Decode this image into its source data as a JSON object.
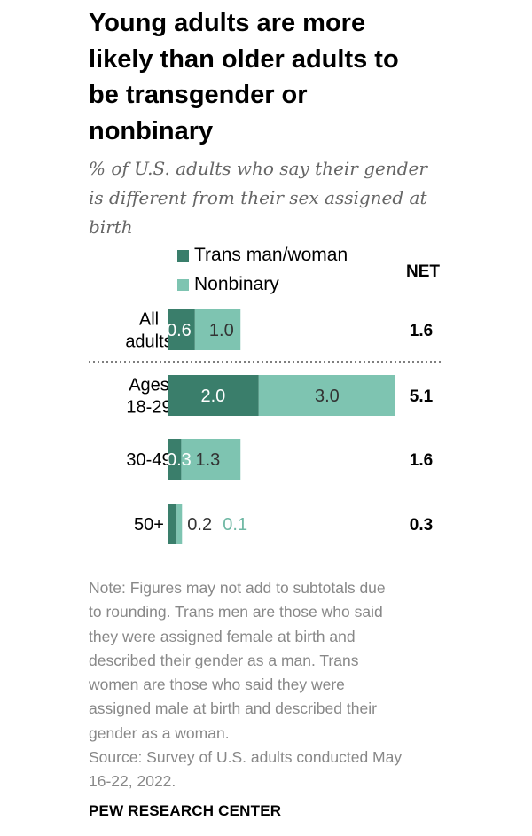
{
  "title_lines": [
    "Young adults are more",
    "likely than older adults to",
    "be transgender or",
    "nonbinary"
  ],
  "subtitle_lines": [
    "% of U.S. adults who say their gender",
    "is different from their sex assigned at",
    "birth"
  ],
  "legend": {
    "trans": "Trans man/woman",
    "nonbinary": "Nonbinary"
  },
  "net_header": "NET",
  "colors": {
    "trans": "#3a7e6b",
    "nonbinary": "#7ec4b1",
    "label_light": "#ffffff",
    "label_dark": "#333333",
    "label_teal": "#6fb8a4"
  },
  "chart_data": {
    "type": "bar",
    "orientation": "horizontal",
    "stacked": true,
    "categories": [
      "All adults",
      "Ages 18-29",
      "30-49",
      "50+"
    ],
    "category_lines": [
      [
        "All",
        "adults"
      ],
      [
        "Ages",
        "18-29"
      ],
      [
        "30-49"
      ],
      [
        "50+"
      ]
    ],
    "series": [
      {
        "name": "Trans man/woman",
        "values": [
          0.6,
          2.0,
          0.3,
          0.2
        ]
      },
      {
        "name": "Nonbinary",
        "values": [
          1.0,
          3.0,
          1.3,
          0.1
        ]
      }
    ],
    "value_labels": {
      "trans": [
        "0.6",
        "2.0",
        "0.3",
        "0.2"
      ],
      "nonbinary": [
        "1.0",
        "3.0",
        "1.3",
        "0.1"
      ]
    },
    "net": [
      "1.6",
      "5.1",
      "1.6",
      "0.3"
    ],
    "title": "Young adults are more likely than older adults to be transgender or nonbinary",
    "xlabel": "",
    "ylabel": ""
  },
  "note_lines": [
    "Note: Figures may not add to subtotals due",
    "to rounding. Trans men are those who said",
    "they were assigned female at birth and",
    "described their gender as a man. Trans",
    "women are those who said they were",
    "assigned male at birth and described their",
    "gender as a woman."
  ],
  "source_lines": [
    "Source: Survey of U.S. adults conducted May",
    "16-22, 2022."
  ],
  "footer": "PEW RESEARCH CENTER"
}
